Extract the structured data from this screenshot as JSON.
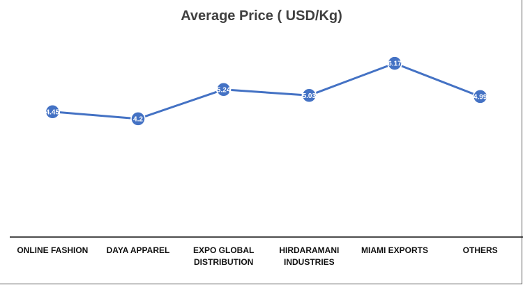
{
  "chart_data": {
    "type": "line",
    "title": "Average Price ( USD/Kg)",
    "xlabel": "",
    "ylabel": "",
    "categories": [
      [
        "ONLINE FASHION"
      ],
      [
        "DAYA APPAREL"
      ],
      [
        "EXPO GLOBAL",
        "DISTRIBUTION"
      ],
      [
        "HIRDARAMANI",
        "INDUSTRIES"
      ],
      [
        "MIAMI EXPORTS"
      ],
      [
        "OTHERS"
      ]
    ],
    "values": [
      4.45,
      4.2,
      5.24,
      5.03,
      6.17,
      4.99
    ],
    "data_labels": [
      "4.45",
      "4.2",
      "5.24",
      "5.03",
      "6.17",
      "4.99"
    ],
    "ylim": [
      0,
      8
    ],
    "y_axis_visible": false,
    "grid": false,
    "legend": "none",
    "colors": {
      "line": "#4472C4",
      "marker": "#4472C4",
      "axis": "#111111"
    }
  }
}
